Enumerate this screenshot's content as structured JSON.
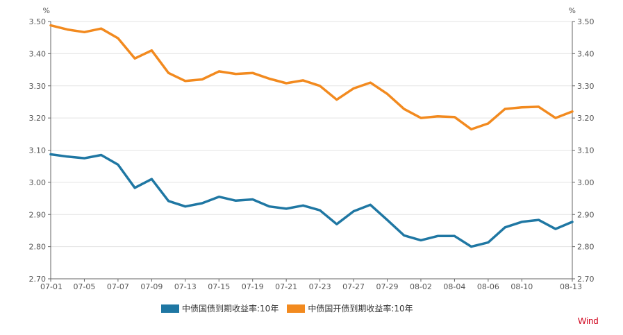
{
  "chart_data": {
    "type": "line",
    "unit_left": "%",
    "unit_right": "%",
    "ylim": [
      2.7,
      3.5
    ],
    "yticks": [
      "2.70",
      "2.80",
      "2.90",
      "3.00",
      "3.10",
      "3.20",
      "3.30",
      "3.40",
      "3.50"
    ],
    "xticks": [
      "07-01",
      "07-05",
      "07-07",
      "07-09",
      "07-13",
      "07-15",
      "07-19",
      "07-21",
      "07-23",
      "07-27",
      "07-29",
      "08-02",
      "08-04",
      "08-06",
      "08-10",
      "08-13"
    ],
    "x": [
      "07-01",
      "07-02",
      "07-05",
      "07-06",
      "07-07",
      "07-08",
      "07-09",
      "07-12",
      "07-13",
      "07-14",
      "07-15",
      "07-16",
      "07-19",
      "07-20",
      "07-21",
      "07-22",
      "07-23",
      "07-26",
      "07-27",
      "07-28",
      "07-29",
      "07-30",
      "08-02",
      "08-03",
      "08-04",
      "08-05",
      "08-06",
      "08-09",
      "08-10",
      "08-11",
      "08-12",
      "08-13"
    ],
    "series": [
      {
        "name": "中债国债到期收益率:10年",
        "color": "#1f77a3",
        "values": [
          3.087,
          3.08,
          3.075,
          3.085,
          3.055,
          2.983,
          3.01,
          2.942,
          2.925,
          2.935,
          2.955,
          2.943,
          2.947,
          2.925,
          2.918,
          2.928,
          2.913,
          2.87,
          2.91,
          2.93,
          2.883,
          2.835,
          2.82,
          2.833,
          2.833,
          2.8,
          2.813,
          2.86,
          2.877,
          2.883,
          2.855,
          2.877
        ]
      },
      {
        "name": "中债国开债到期收益率:10年",
        "color": "#f28a1f",
        "values": [
          3.488,
          3.475,
          3.467,
          3.478,
          3.448,
          3.385,
          3.41,
          3.34,
          3.315,
          3.32,
          3.345,
          3.337,
          3.34,
          3.322,
          3.308,
          3.317,
          3.3,
          3.257,
          3.292,
          3.31,
          3.275,
          3.228,
          3.2,
          3.205,
          3.203,
          3.165,
          3.183,
          3.228,
          3.233,
          3.235,
          3.2,
          3.22
        ]
      }
    ]
  },
  "brand": {
    "text": "Wind",
    "color": "#d0021b"
  }
}
